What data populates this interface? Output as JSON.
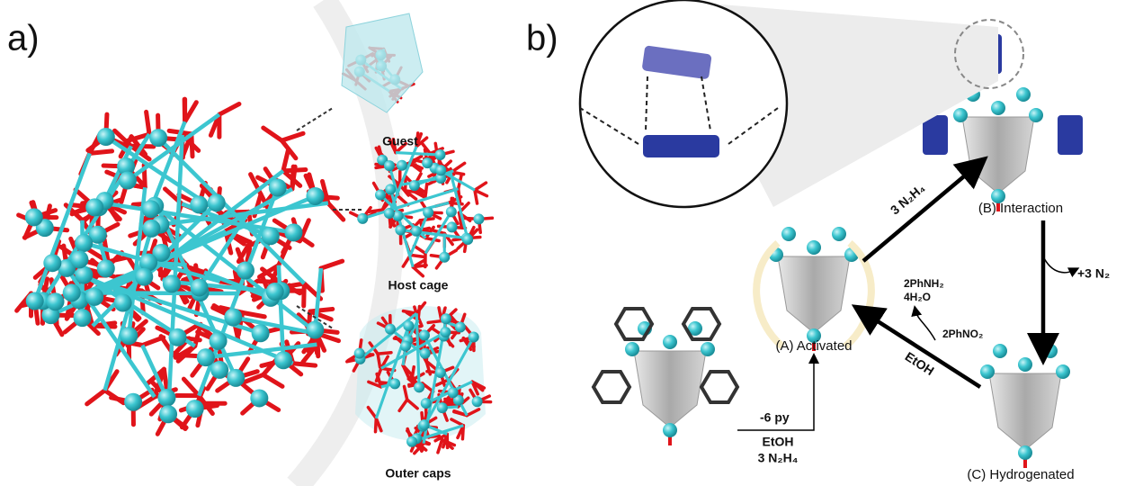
{
  "panels": {
    "a": {
      "label": "a)",
      "parts": [
        "Guest",
        "Host cage",
        "Outer caps"
      ]
    },
    "b": {
      "label": "b)",
      "states": [
        "(A) Activated",
        "(B) Interaction",
        "(C) Hydrogenated"
      ],
      "reagents": {
        "to_b": "3 N₂H₄",
        "released": "+3 N₂",
        "products": [
          "2PhNH₂",
          "4H₂O"
        ],
        "oxidant": "2PhNO₂",
        "solvent": "EtOH",
        "activation": [
          "-6 py",
          "EtOH",
          "3 N₂H₄"
        ]
      }
    }
  }
}
